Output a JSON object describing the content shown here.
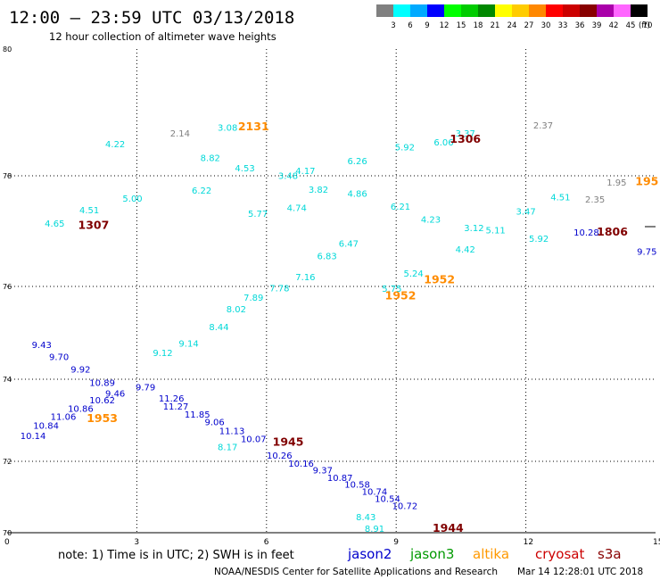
{
  "header": {
    "title": "12:00 — 23:59 UTC 03/13/2018",
    "subtitle": "12 hour collection of altimeter wave heights"
  },
  "color_scale": {
    "labels": [
      "3",
      "6",
      "9",
      "12",
      "15",
      "18",
      "21",
      "24",
      "27",
      "30",
      "33",
      "36",
      "39",
      "42",
      "45",
      "70"
    ],
    "unit": "(ft)",
    "colors": [
      "#808080",
      "#00ffff",
      "#00aaff",
      "#0000ff",
      "#00ff00",
      "#00cc00",
      "#008800",
      "#ffff00",
      "#ffcc00",
      "#ff8800",
      "#ff0000",
      "#cc0000",
      "#880000",
      "#aa00aa",
      "#ff66ff",
      "#000000"
    ]
  },
  "footer": {
    "note": "note:  1) Time is in UTC;  2) SWH is in feet",
    "credit": "NOAA/NESDIS Center for Satellite Applications and Research",
    "timestamp": "Mar 14 12:28:01 UTC 2018",
    "legend": [
      {
        "name": "jason2",
        "color": "#0000cc"
      },
      {
        "name": "jason3",
        "color": "#009900"
      },
      {
        "name": "altika",
        "color": "#ff9900"
      },
      {
        "name": "cryosat",
        "color": "#cc0000"
      },
      {
        "name": "s3a",
        "color": "#880000"
      }
    ]
  },
  "chart_data": {
    "type": "scatter",
    "title": "12:00 — 23:59 UTC 03/13/2018",
    "subtitle": "12 hour collection of altimeter wave heights",
    "x_ticks": [
      "0",
      "3",
      "6",
      "9",
      "12",
      "15"
    ],
    "y_ticks": [
      "80",
      "78",
      "76",
      "74",
      "72",
      "70"
    ],
    "grid": true,
    "series": [
      {
        "color": "#00d8d8",
        "points": [
          {
            "x": 8.5,
            "y": 70.03,
            "label": "8.91"
          },
          {
            "x": 8.3,
            "y": 70.35,
            "label": "8.43"
          },
          {
            "x": 8.9,
            "y": 75.88,
            "label": "5.75"
          },
          {
            "x": 9.4,
            "y": 76.18,
            "label": "5.24"
          },
          {
            "x": 10.6,
            "y": 76.61,
            "label": "4.42"
          },
          {
            "x": 11.3,
            "y": 76.96,
            "label": "5.11"
          },
          {
            "x": 12.0,
            "y": 77.3,
            "label": "3.47"
          },
          {
            "x": 12.8,
            "y": 77.56,
            "label": "4.51"
          },
          {
            "x": 5.1,
            "y": 72.27,
            "label": "8.17"
          },
          {
            "x": 3.6,
            "y": 74.5,
            "label": "9.12"
          },
          {
            "x": 4.2,
            "y": 74.7,
            "label": "9.14"
          },
          {
            "x": 4.9,
            "y": 75.06,
            "label": "8.44"
          },
          {
            "x": 5.3,
            "y": 75.44,
            "label": "8.02"
          },
          {
            "x": 5.7,
            "y": 75.69,
            "label": "7.89"
          },
          {
            "x": 6.3,
            "y": 75.89,
            "label": "7.78"
          },
          {
            "x": 6.9,
            "y": 76.11,
            "label": "7.16"
          },
          {
            "x": 7.4,
            "y": 76.49,
            "label": "6.83"
          },
          {
            "x": 7.9,
            "y": 76.72,
            "label": "6.47"
          },
          {
            "x": 5.8,
            "y": 77.26,
            "label": "5.77"
          },
          {
            "x": 6.7,
            "y": 77.36,
            "label": "4.74"
          },
          {
            "x": 4.5,
            "y": 77.68,
            "label": "6.22"
          },
          {
            "x": 2.9,
            "y": 77.53,
            "label": "5.00"
          },
          {
            "x": 1.9,
            "y": 77.32,
            "label": "4.51"
          },
          {
            "x": 1.1,
            "y": 77.08,
            "label": "4.65"
          },
          {
            "x": 2.5,
            "y": 78.45,
            "label": "4.22"
          },
          {
            "x": 4.7,
            "y": 78.23,
            "label": "8.82"
          },
          {
            "x": 5.5,
            "y": 78.07,
            "label": "4.53"
          },
          {
            "x": 6.5,
            "y": 77.94,
            "label": "3.48"
          },
          {
            "x": 6.9,
            "y": 78.03,
            "label": "4.17"
          },
          {
            "x": 7.2,
            "y": 77.69,
            "label": "3.82"
          },
          {
            "x": 8.1,
            "y": 78.18,
            "label": "6.26"
          },
          {
            "x": 8.1,
            "y": 77.62,
            "label": "4.86"
          },
          {
            "x": 9.1,
            "y": 77.39,
            "label": "6.21"
          },
          {
            "x": 9.2,
            "y": 78.4,
            "label": "5.92"
          },
          {
            "x": 10.1,
            "y": 78.48,
            "label": "6.06"
          },
          {
            "x": 10.6,
            "y": 78.62,
            "label": "3.37"
          },
          {
            "x": 9.8,
            "y": 77.15,
            "label": "4.23"
          },
          {
            "x": 10.8,
            "y": 77.0,
            "label": "3.12"
          },
          {
            "x": 12.3,
            "y": 76.81,
            "label": "5.92"
          },
          {
            "x": 5.1,
            "y": 78.71,
            "label": "3.08"
          }
        ]
      },
      {
        "color": "#0000cc",
        "points": [
          {
            "x": 0.8,
            "y": 74.67,
            "label": "9.43"
          },
          {
            "x": 1.2,
            "y": 74.41,
            "label": "9.70"
          },
          {
            "x": 1.7,
            "y": 74.14,
            "label": "9.92"
          },
          {
            "x": 2.2,
            "y": 73.84,
            "label": "10.89"
          },
          {
            "x": 3.8,
            "y": 73.46,
            "label": "11.26"
          },
          {
            "x": 3.9,
            "y": 73.26,
            "label": "11.27"
          },
          {
            "x": 4.4,
            "y": 73.07,
            "label": "11.85"
          },
          {
            "x": 4.8,
            "y": 72.88,
            "label": "9.06"
          },
          {
            "x": 5.2,
            "y": 72.66,
            "label": "11.13"
          },
          {
            "x": 5.7,
            "y": 72.47,
            "label": "10.07"
          },
          {
            "x": 6.3,
            "y": 72.06,
            "label": "10.26"
          },
          {
            "x": 6.8,
            "y": 71.85,
            "label": "10.16"
          },
          {
            "x": 7.3,
            "y": 71.66,
            "label": "9.37"
          },
          {
            "x": 7.7,
            "y": 71.45,
            "label": "10.87"
          },
          {
            "x": 8.1,
            "y": 71.26,
            "label": "10.58"
          },
          {
            "x": 8.5,
            "y": 71.06,
            "label": "10.74"
          },
          {
            "x": 8.8,
            "y": 70.86,
            "label": "10.54"
          },
          {
            "x": 9.2,
            "y": 70.66,
            "label": "10.72"
          },
          {
            "x": 0.6,
            "y": 72.54,
            "label": "10.14"
          },
          {
            "x": 0.9,
            "y": 72.79,
            "label": "10.84"
          },
          {
            "x": 1.3,
            "y": 73.01,
            "label": "11.06"
          },
          {
            "x": 1.7,
            "y": 73.21,
            "label": "10.86"
          },
          {
            "x": 2.2,
            "y": 73.41,
            "label": "10.62"
          },
          {
            "x": 2.5,
            "y": 73.58,
            "label": "9.46"
          },
          {
            "x": 3.2,
            "y": 73.73,
            "label": "9.79"
          },
          {
            "x": 13.4,
            "y": 76.92,
            "label": "10.28"
          },
          {
            "x": 14.8,
            "y": 76.57,
            "label": "9.75"
          }
        ]
      },
      {
        "color": "#ff8c00",
        "points": [
          {
            "x": 5.7,
            "y": 78.72,
            "label": "2131"
          },
          {
            "x": 9.1,
            "y": 75.72,
            "label": "1952"
          },
          {
            "x": 10.0,
            "y": 76.06,
            "label": "1952"
          },
          {
            "x": 2.2,
            "y": 72.96,
            "label": "1953"
          },
          {
            "x": 14.8,
            "y": 77.83,
            "label": "195"
          }
        ]
      },
      {
        "color": "#800000",
        "points": [
          {
            "x": 2.0,
            "y": 77.04,
            "label": "1307"
          },
          {
            "x": 10.6,
            "y": 78.52,
            "label": "1306"
          },
          {
            "x": 14.0,
            "y": 76.92,
            "label": "1806"
          },
          {
            "x": 6.5,
            "y": 72.38,
            "label": "1945"
          },
          {
            "x": 10.2,
            "y": 70.03,
            "label": "1944"
          }
        ]
      },
      {
        "color": "#808080",
        "points": [
          {
            "x": 4.0,
            "y": 78.62,
            "label": "2.14"
          },
          {
            "x": 12.4,
            "y": 78.75,
            "label": "2.37"
          },
          {
            "x": 13.6,
            "y": 77.52,
            "label": "2.35"
          },
          {
            "x": 14.1,
            "y": 77.82,
            "label": "1.95"
          }
        ]
      }
    ]
  }
}
